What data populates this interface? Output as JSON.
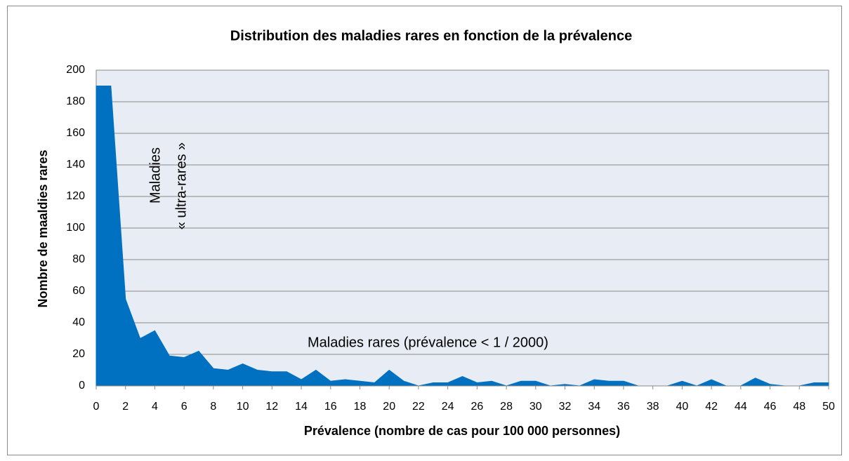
{
  "chart_data": {
    "type": "area",
    "title": "Distribution des maladies rares en fonction de la prévalence",
    "x_label": "Prévalence (nombre de cas pour 100 000 personnes)",
    "y_label": "Nombre de maaldies rares",
    "annotations": [
      "Maladies",
      "« ultra-rares »",
      "Maladies rares (prévalence < 1 / 2000)"
    ],
    "x": [
      0,
      1,
      2,
      3,
      4,
      5,
      6,
      7,
      8,
      9,
      10,
      11,
      12,
      13,
      14,
      15,
      16,
      17,
      18,
      19,
      20,
      21,
      22,
      23,
      24,
      25,
      26,
      27,
      28,
      29,
      30,
      31,
      32,
      33,
      34,
      35,
      36,
      37,
      38,
      39,
      40,
      41,
      42,
      43,
      44,
      45,
      46,
      47,
      48,
      49,
      50
    ],
    "values": [
      190,
      190,
      55,
      30,
      35,
      19,
      18,
      22,
      11,
      10,
      14,
      10,
      9,
      9,
      4,
      10,
      3,
      4,
      3,
      2,
      10,
      3,
      0,
      2,
      2,
      6,
      2,
      3,
      0,
      3,
      3,
      0,
      1,
      0,
      4,
      3,
      3,
      0,
      0,
      0,
      3,
      0,
      4,
      0,
      0,
      5,
      1,
      0,
      0,
      2,
      2
    ],
    "color": "#0070c0",
    "xlim": [
      0,
      50
    ],
    "xticks": [
      0,
      2,
      4,
      6,
      8,
      10,
      12,
      14,
      16,
      18,
      20,
      22,
      24,
      26,
      28,
      30,
      32,
      34,
      36,
      38,
      40,
      42,
      44,
      46,
      48,
      50
    ],
    "ylim": [
      0,
      200
    ],
    "yticks": [
      0,
      20,
      40,
      60,
      80,
      100,
      120,
      140,
      160,
      180,
      200
    ],
    "grid": true
  }
}
